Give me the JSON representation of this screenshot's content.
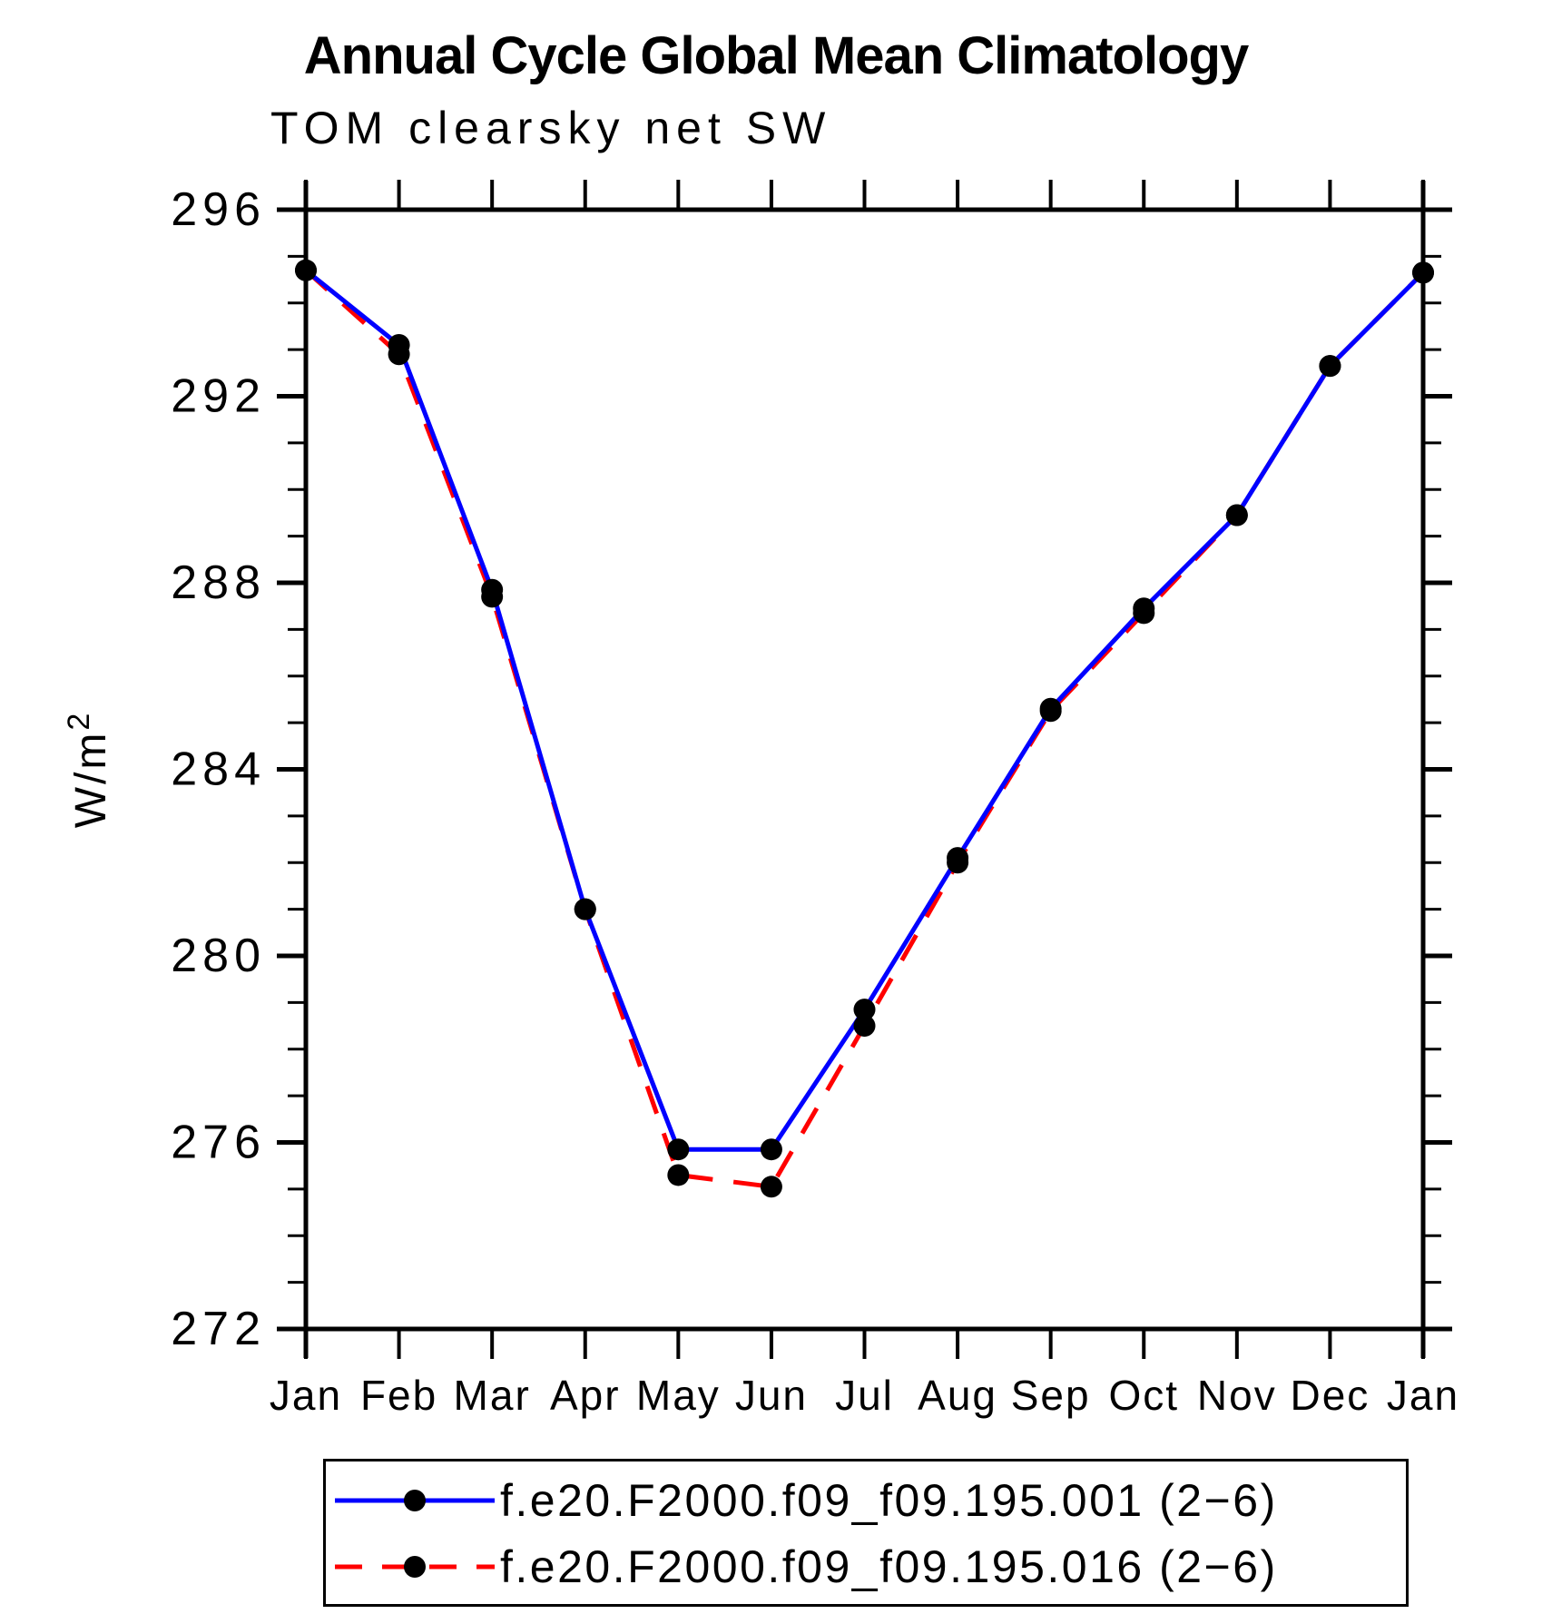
{
  "page": {
    "background": "#ffffff",
    "text_color": "#000000"
  },
  "chart_data": {
    "type": "line",
    "title": "Annual Cycle Global Mean Climatology",
    "subtitle": "TOM clearsky net SW",
    "ylabel": "W/m²",
    "xlabel": "",
    "categories": [
      "Jan",
      "Feb",
      "Mar",
      "Apr",
      "May",
      "Jun",
      "Jul",
      "Aug",
      "Sep",
      "Oct",
      "Nov",
      "Dec",
      "Jan"
    ],
    "ylim": [
      272,
      296
    ],
    "ytick_step": 4,
    "yminor_step": 1,
    "ytick_labels": [
      "296",
      "292",
      "288",
      "284",
      "280",
      "276",
      "272"
    ],
    "grid": false,
    "legend_position": "bottom",
    "axis_color": "#000000",
    "marker": "filled-circle",
    "marker_color": "#000000",
    "series": [
      {
        "name": "f.e20.F2000.f09_f09.195.001 (2−6)",
        "color": "#0000ff",
        "line_style": "solid",
        "values": [
          294.7,
          293.1,
          287.85,
          281.0,
          275.85,
          275.85,
          278.85,
          282.1,
          285.3,
          287.45,
          289.45,
          292.65,
          294.65
        ]
      },
      {
        "name": "f.e20.F2000.f09_f09.195.016 (2−6)",
        "color": "#ff0000",
        "line_style": "dashed",
        "values": [
          294.7,
          292.9,
          287.7,
          281.0,
          275.3,
          275.05,
          278.5,
          282.0,
          285.25,
          287.35,
          289.45,
          292.65,
          294.65
        ]
      }
    ]
  }
}
